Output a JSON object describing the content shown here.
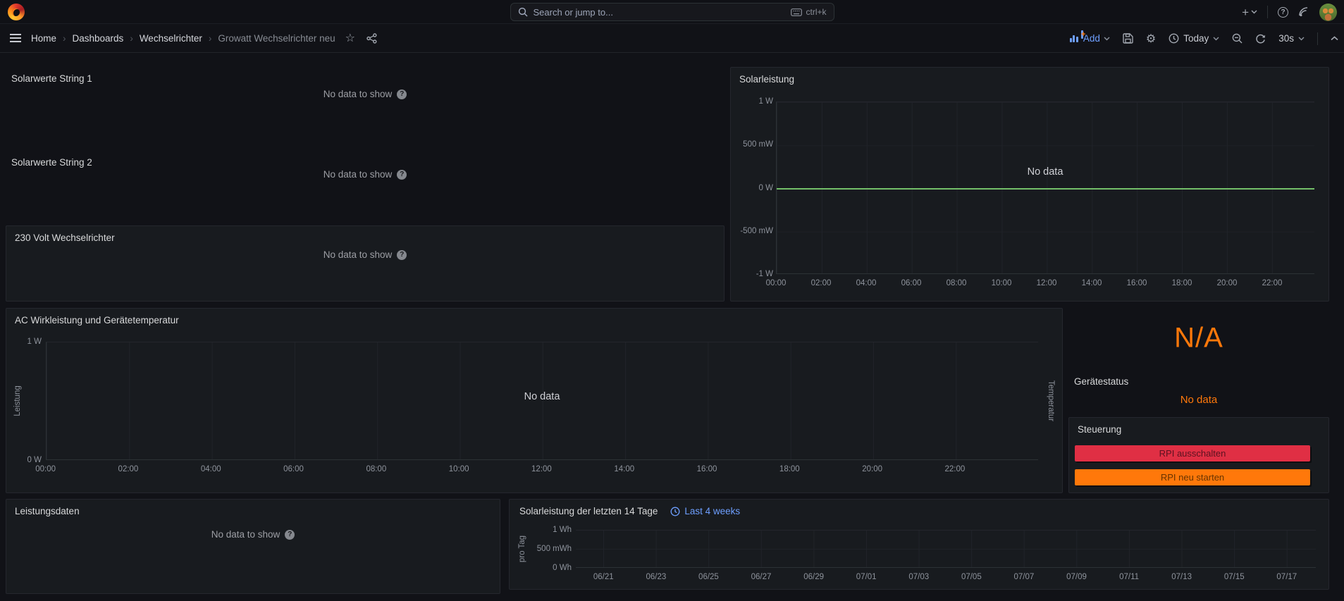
{
  "topnav": {
    "search": {
      "placeholder": "Search or jump to...",
      "shortcut": "ctrl+k"
    }
  },
  "toolbar": {
    "breadcrumb": [
      "Home",
      "Dashboards",
      "Wechselrichter",
      "Growatt Wechselrichter neu"
    ],
    "add_label": "Add",
    "time_range": "Today",
    "refresh_interval": "30s"
  },
  "panels": {
    "solarwerte1": {
      "title": "Solarwerte String 1",
      "empty": "No data to show"
    },
    "solarwerte2": {
      "title": "Solarwerte String 2",
      "empty": "No data to show"
    },
    "volt230": {
      "title": "230 Volt Wechselrichter",
      "empty": "No data to show"
    },
    "solarleistung": {
      "title": "Solarleistung",
      "no_data": "No data",
      "chart": {
        "type": "line",
        "y_ticks": [
          "1 W",
          "500 mW",
          "0 W",
          "-500 mW",
          "-1 W"
        ],
        "x_ticks": [
          "00:00",
          "02:00",
          "04:00",
          "06:00",
          "08:00",
          "10:00",
          "12:00",
          "14:00",
          "16:00",
          "18:00",
          "20:00",
          "22:00"
        ],
        "zero_line_color": "#73BF69",
        "series": []
      }
    },
    "ac": {
      "title": "AC Wirkleistung und Gerätetemperatur",
      "no_data": "No data",
      "y_left_label": "Leistung",
      "y_right_label": "Temperatur",
      "chart": {
        "type": "line",
        "y_ticks": [
          "1 W",
          "0 W"
        ],
        "x_ticks": [
          "00:00",
          "02:00",
          "04:00",
          "06:00",
          "08:00",
          "10:00",
          "12:00",
          "14:00",
          "16:00",
          "18:00",
          "20:00",
          "22:00"
        ],
        "series": []
      }
    },
    "stat": {
      "value": "N/A"
    },
    "geraetestatus": {
      "title": "Gerätestatus",
      "no_data": "No data"
    },
    "steuerung": {
      "title": "Steuerung",
      "buttons": [
        {
          "label": "RPI ausschalten",
          "color": "#E02F44"
        },
        {
          "label": "RPI neu starten",
          "color": "#FF780A"
        }
      ]
    },
    "leistungsdaten": {
      "title": "Leistungsdaten",
      "empty": "No data to show"
    },
    "tage14": {
      "title": "Solarleistung der letzten 14 Tage",
      "link": "Last 4 weeks",
      "y_axis_label": "pro Tag",
      "chart": {
        "type": "bar",
        "y_ticks": [
          "1 Wh",
          "500 mWh",
          "0 Wh"
        ],
        "x_ticks": [
          "06/21",
          "06/23",
          "06/25",
          "06/27",
          "06/29",
          "07/01",
          "07/03",
          "07/05",
          "07/07",
          "07/09",
          "07/11",
          "07/13",
          "07/15",
          "07/17"
        ],
        "series": []
      }
    }
  },
  "colors": {
    "accent_blue": "#6E9FFF",
    "orange": "#FF780A",
    "green": "#73BF69",
    "red": "#E02F44",
    "panel_bg": "#181B1F",
    "page_bg": "#111217"
  },
  "icons": {
    "grafana_logo": "flame-swirl",
    "search": "magnifier",
    "keyboard": "keyboard",
    "create_new": "+",
    "help": "?",
    "news": "rss",
    "star": "☆",
    "share": "share-nodes",
    "save": "floppy",
    "settings": "⚙",
    "clock": "clock",
    "zoom_out": "magnifier-minus",
    "refresh": "circular-arrows",
    "collapse": "chevron-up",
    "menu": "hamburger"
  }
}
